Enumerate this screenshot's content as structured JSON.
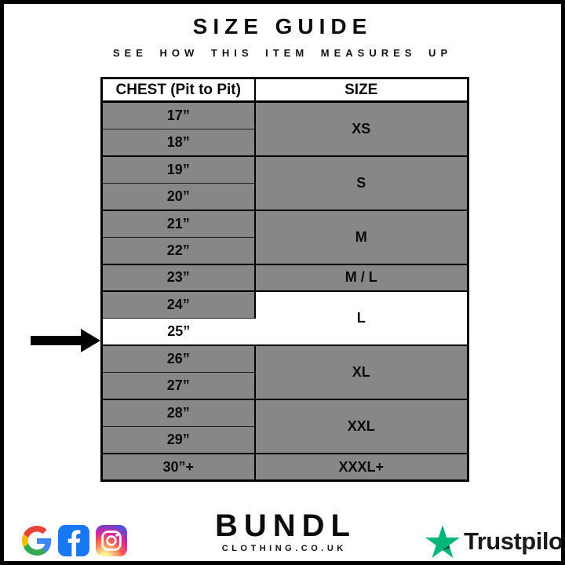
{
  "page": {
    "title": "SIZE GUIDE",
    "subtitle": "SEE HOW THIS ITEM MEASURES UP"
  },
  "size_chart": {
    "columns": [
      "CHEST (Pit to Pit)",
      "SIZE"
    ],
    "rows": [
      {
        "chest": "17”",
        "size": "XS",
        "size_rowspan": 2
      },
      {
        "chest": "18”"
      },
      {
        "chest": "19”",
        "size": "S",
        "size_rowspan": 2
      },
      {
        "chest": "20”"
      },
      {
        "chest": "21”",
        "size": "M",
        "size_rowspan": 2
      },
      {
        "chest": "22”"
      },
      {
        "chest": "23”",
        "size": "M / L",
        "size_rowspan": 1
      },
      {
        "chest": "24”",
        "size": "L",
        "size_rowspan": 2,
        "size_highlight": true
      },
      {
        "chest": "25”",
        "chest_highlight": true,
        "arrow": true
      },
      {
        "chest": "26”",
        "size": "XL",
        "size_rowspan": 2
      },
      {
        "chest": "27”"
      },
      {
        "chest": "28”",
        "size": "XXL",
        "size_rowspan": 2
      },
      {
        "chest": "29”"
      },
      {
        "chest": "30”+",
        "size": "XXXL+",
        "size_rowspan": 1
      }
    ],
    "highlighted": {
      "chest": "25”",
      "size": "L"
    }
  },
  "footer": {
    "social_icons": [
      "google-icon",
      "facebook-icon",
      "instagram-icon"
    ],
    "brand": {
      "name": "BUNDL",
      "domain": "CLOTHING.CO.UK"
    },
    "trustpilot": {
      "label": "Trustpilot"
    }
  },
  "colors": {
    "row_gray": "#878787",
    "highlight_white": "#ffffff",
    "facebook_blue": "#1877f2",
    "trustpilot_green": "#00b67a",
    "trustpilot_dark_green": "#005128",
    "google_blue": "#4285f4",
    "google_red": "#ea4335",
    "google_yellow": "#fbbc05",
    "google_green": "#34a853",
    "ig_1": "#fdf497",
    "ig_2": "#fd5949",
    "ig_3": "#d6249f",
    "ig_4": "#285aeb"
  }
}
